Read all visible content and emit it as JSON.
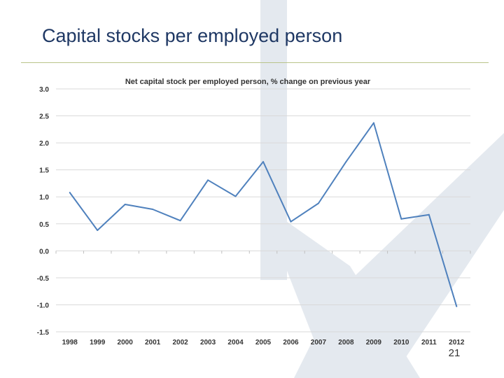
{
  "slide": {
    "title": "Capital stocks per employed person",
    "page_number": "21"
  },
  "colors": {
    "title": "#1f3864",
    "line": "#4f81bd",
    "grid": "#d9d9d9",
    "watermark": "#e4e9ef",
    "rule": "#b9c48a"
  },
  "chart_data": {
    "type": "line",
    "title": "Net capital stock per employed person, % change on previous year",
    "xlabel": "",
    "ylabel": "",
    "categories": [
      "1998",
      "1999",
      "2000",
      "2001",
      "2002",
      "2003",
      "2004",
      "2005",
      "2006",
      "2007",
      "2008",
      "2009",
      "2010",
      "2011",
      "2012"
    ],
    "series": [
      {
        "values": [
          1.08,
          0.38,
          0.86,
          0.77,
          0.56,
          1.31,
          1.01,
          1.65,
          0.54,
          0.88,
          1.65,
          2.37,
          0.59,
          0.67,
          -1.03
        ]
      }
    ],
    "ylim": [
      -1.5,
      3.0
    ],
    "yticks": [
      "3.0",
      "2.5",
      "2.0",
      "1.5",
      "1.0",
      "0.5",
      "0.0",
      "-0.5",
      "-1.0",
      "-1.5"
    ],
    "grid": true,
    "legend": "none"
  }
}
